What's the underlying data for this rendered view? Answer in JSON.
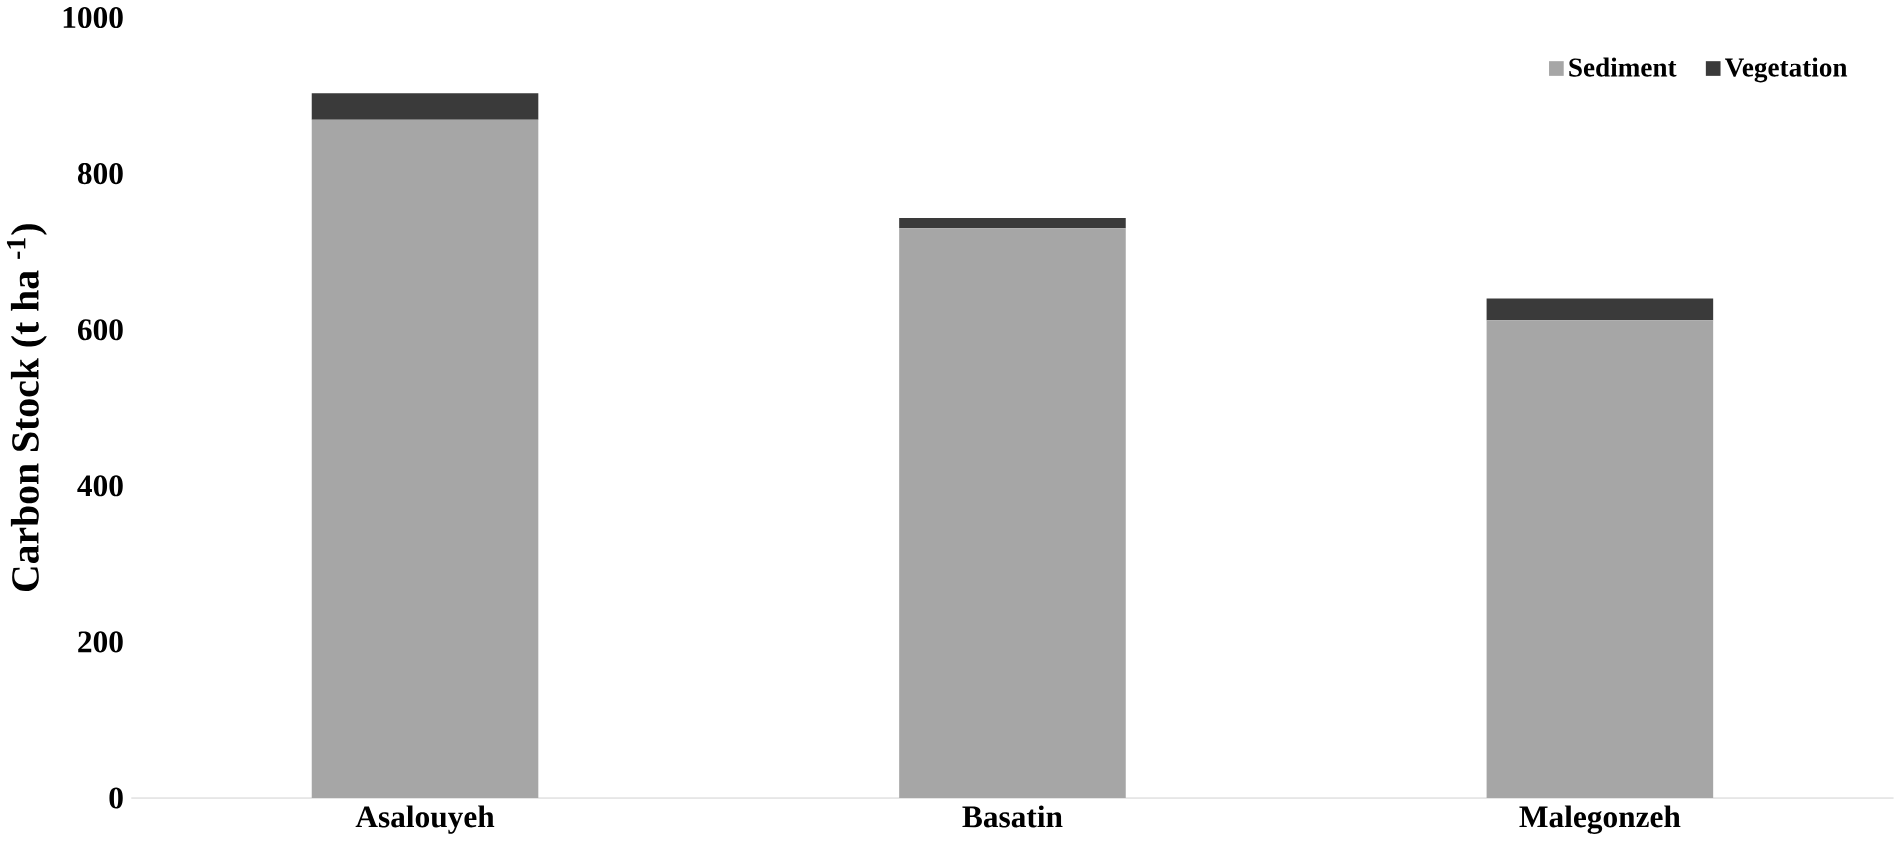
{
  "chart_data": {
    "type": "bar",
    "stacked": true,
    "ylabel": "Carbon Stock (t ha $^{-1}$)",
    "categories": [
      "Asalouyeh",
      "Basatin",
      "Malegonzeh"
    ],
    "series": [
      {
        "name": "Sediment",
        "color": "#a6a6a6",
        "values": [
          869,
          730,
          612
        ]
      },
      {
        "name": "Vegetation",
        "color": "#3a3a3a",
        "values": [
          34,
          13,
          28
        ]
      }
    ],
    "ylim": [
      0,
      1000
    ],
    "yticks": [
      0,
      200,
      400,
      600,
      800,
      1000
    ],
    "legend": "top right"
  }
}
